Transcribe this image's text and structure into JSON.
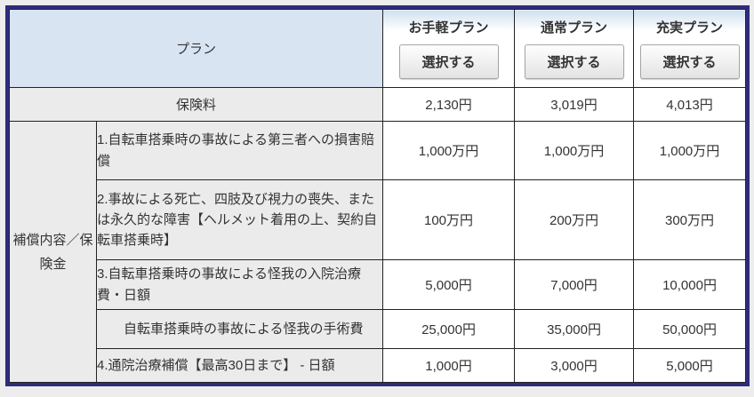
{
  "table": {
    "plan_header_label": "プラン",
    "select_button_label": "選択する",
    "plans": [
      "お手軽プラン",
      "通常プラン",
      "充実プラン"
    ],
    "premium_row": {
      "label": "保険料",
      "values": [
        "2,130円",
        "3,019円",
        "4,013円"
      ]
    },
    "coverage_group_label": "補償内容／保険金",
    "coverage_rows": [
      {
        "description": "1.自転車搭乗時の事故による第三者への損害賠償",
        "values": [
          "1,000万円",
          "1,000万円",
          "1,000万円"
        ]
      },
      {
        "description": "2.事故による死亡、四肢及び視力の喪失、または永久的な障害【ヘルメット着用の上、契約自転車搭乗時】",
        "values": [
          "100万円",
          "200万円",
          "300万円"
        ]
      },
      {
        "description": "3.自転車搭乗時の事故による怪我の入院治療費・日額",
        "values": [
          "5,000円",
          "7,000円",
          "10,000円"
        ]
      },
      {
        "description": "自転車搭乗時の事故による怪我の手術費",
        "values": [
          "25,000円",
          "35,000円",
          "50,000円"
        ]
      },
      {
        "description": "4.通院治療補償【最高30日まで】 - 日額",
        "values": [
          "1,000円",
          "3,000円",
          "5,000円"
        ]
      }
    ],
    "colors": {
      "outer_border": "#2e2c7d",
      "header_blue": "#d8e4f2",
      "gray_cell": "#ebebeb",
      "cell_border": "#222222",
      "text": "#333333"
    }
  }
}
